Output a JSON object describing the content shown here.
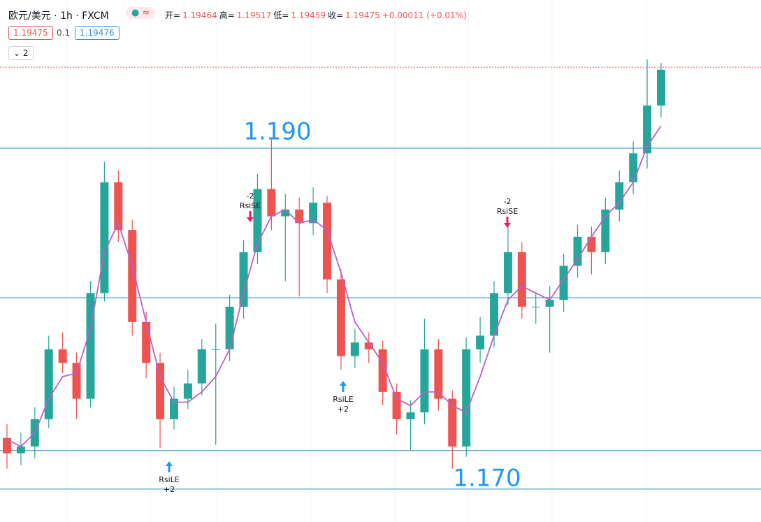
{
  "header": {
    "symbol": "欧元/美元 · 1h · FXCM",
    "badge": "≈",
    "ohlc": [
      {
        "label": "开=",
        "value": 1.19464
      },
      {
        "label": "高=",
        "value": 1.19517
      },
      {
        "label": "低=",
        "value": 1.19459
      },
      {
        "label": "收=",
        "value": 1.19475
      }
    ],
    "change": "+0.00011 (+0.01%)",
    "sell": 1.19475,
    "spread": 0.1,
    "buy": 1.19476,
    "indicators": 2
  },
  "chart_data": {
    "type": "candlestick",
    "ylim": [
      1.16807,
      1.19869
    ],
    "up_color": "#26a69a",
    "down_color": "#ef5350",
    "open": [
      1.173,
      1.1721,
      1.1725,
      1.1741,
      1.1782,
      1.1774,
      1.1753,
      1.1815,
      1.188,
      1.1852,
      1.1798,
      1.1774,
      1.1741,
      1.1753,
      1.1762,
      1.1782,
      1.1782,
      1.1807,
      1.1839,
      1.1876,
      1.186,
      1.1864,
      1.1856,
      1.1868,
      1.1823,
      1.1778,
      1.1786,
      1.1782,
      1.1757,
      1.1741,
      1.1745,
      1.1782,
      1.1753,
      1.1725,
      1.1782,
      1.179,
      1.1815,
      1.1839,
      1.1807,
      1.1807,
      1.1811,
      1.1831,
      1.1848,
      1.1839,
      1.1864,
      1.188,
      1.1897,
      1.1925
    ],
    "high": [
      1.1738,
      1.1733,
      1.1748,
      1.179,
      1.1792,
      1.178,
      1.1822,
      1.1892,
      1.1887,
      1.1858,
      1.1804,
      1.178,
      1.176,
      1.177,
      1.1788,
      1.1797,
      1.1814,
      1.1846,
      1.1885,
      1.1905,
      1.1873,
      1.1871,
      1.1877,
      1.1872,
      1.1829,
      1.1794,
      1.1792,
      1.1787,
      1.1762,
      1.1752,
      1.18,
      1.1788,
      1.1758,
      1.1789,
      1.1801,
      1.1822,
      1.1857,
      1.1845,
      1.1815,
      1.1819,
      1.1838,
      1.1855,
      1.1854,
      1.1871,
      1.1887,
      1.1904,
      1.1952,
      1.195
    ],
    "low": [
      1.1712,
      1.1714,
      1.1718,
      1.1736,
      1.1768,
      1.1741,
      1.1748,
      1.181,
      1.1845,
      1.179,
      1.1765,
      1.1724,
      1.1735,
      1.1747,
      1.1755,
      1.1726,
      1.1775,
      1.18,
      1.1832,
      1.1852,
      1.1822,
      1.1813,
      1.1849,
      1.1815,
      1.177,
      1.1771,
      1.1774,
      1.1749,
      1.1732,
      1.1723,
      1.1738,
      1.1746,
      1.1712,
      1.1719,
      1.1774,
      1.1783,
      1.1808,
      1.18,
      1.1797,
      1.178,
      1.1804,
      1.1824,
      1.1826,
      1.1832,
      1.1857,
      1.1873,
      1.1888,
      1.1918
    ],
    "close": [
      1.1721,
      1.1725,
      1.1741,
      1.1782,
      1.1774,
      1.1753,
      1.1815,
      1.188,
      1.1852,
      1.1798,
      1.1774,
      1.1741,
      1.1753,
      1.1762,
      1.1782,
      1.1782,
      1.1807,
      1.1839,
      1.1876,
      1.186,
      1.1864,
      1.1856,
      1.1868,
      1.1823,
      1.1778,
      1.1786,
      1.1782,
      1.1757,
      1.1741,
      1.1745,
      1.1782,
      1.1753,
      1.1725,
      1.1782,
      1.179,
      1.1815,
      1.1839,
      1.1807,
      1.1807,
      1.1811,
      1.1831,
      1.1848,
      1.1839,
      1.1864,
      1.188,
      1.1897,
      1.1925,
      1.1946
    ],
    "ma": {
      "color": "#b760c9",
      "values": [
        1.1729,
        1.1725,
        1.1733,
        1.1753,
        1.1766,
        1.1768,
        1.1794,
        1.1839,
        1.1856,
        1.1831,
        1.1798,
        1.1766,
        1.1751,
        1.1751,
        1.1757,
        1.1766,
        1.1782,
        1.1815,
        1.1844,
        1.186,
        1.1864,
        1.1856,
        1.1858,
        1.1852,
        1.1827,
        1.1798,
        1.1786,
        1.1774,
        1.1753,
        1.1749,
        1.1757,
        1.1757,
        1.1749,
        1.1745,
        1.1766,
        1.179,
        1.1811,
        1.1819,
        1.1815,
        1.1811,
        1.1823,
        1.1835,
        1.1848,
        1.186,
        1.1868,
        1.188,
        1.1901,
        1.1913
      ]
    },
    "hlines": [
      {
        "value": 1.19,
        "label": "1.190"
      },
      {
        "value": 1.18123
      },
      {
        "value": 1.17226
      },
      {
        "value": 1.17,
        "label": "1.170"
      }
    ],
    "line_color": "#2a8cc9",
    "signals": [
      {
        "text": "RsiLE",
        "qty": "+2"
      },
      {
        "text": "RsiSE",
        "qty": "-2"
      },
      {
        "text": "RsiLE",
        "qty": "+2"
      },
      {
        "text": "RsiSE",
        "qty": "-2"
      }
    ]
  }
}
